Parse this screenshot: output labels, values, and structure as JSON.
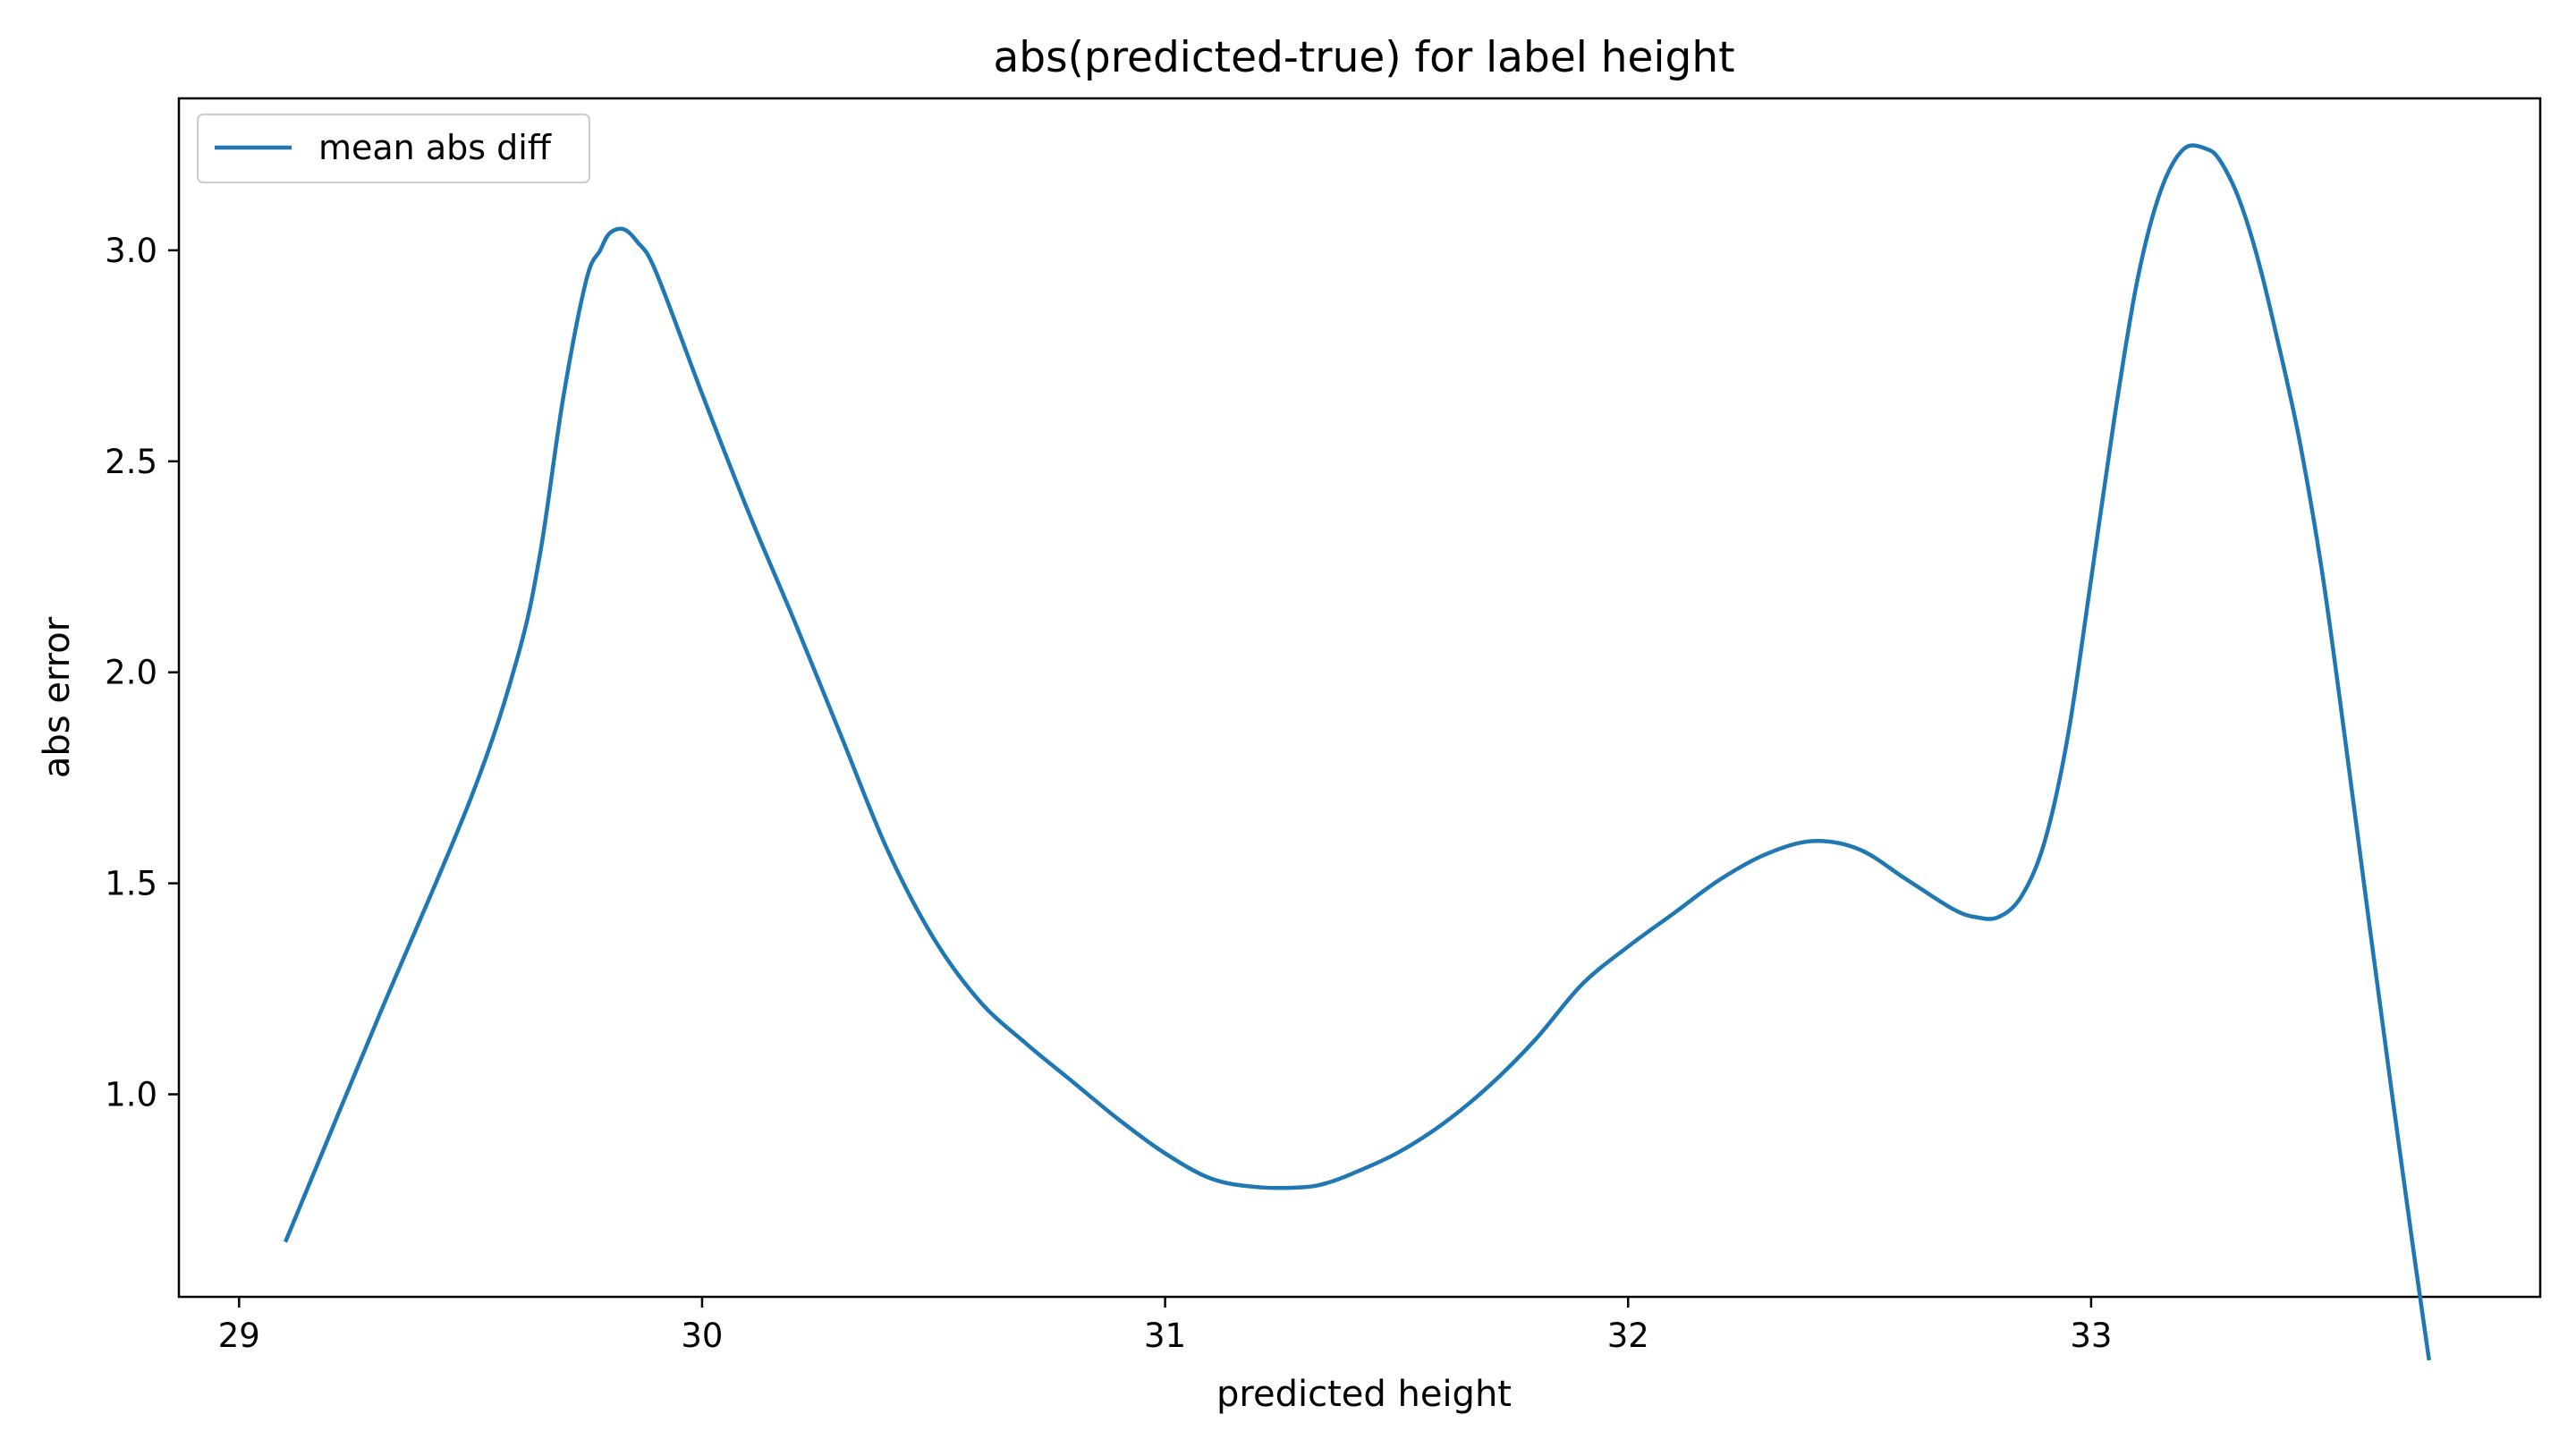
{
  "chart_data": {
    "type": "line",
    "title": "abs(predicted-true) for label height",
    "xlabel": "predicted height",
    "ylabel": "abs error",
    "xlim": [
      28.87,
      33.97
    ],
    "ylim": [
      0.52,
      3.36
    ],
    "xticks": [
      29,
      30,
      31,
      32,
      33
    ],
    "xtick_labels": [
      "29",
      "30",
      "31",
      "32",
      "33"
    ],
    "yticks": [
      1.0,
      1.5,
      2.0,
      2.5,
      3.0
    ],
    "ytick_labels": [
      "1.0",
      "1.5",
      "2.0",
      "2.5",
      "3.0"
    ],
    "grid": false,
    "legend_position": "top-left",
    "series": [
      {
        "name": "mean abs diff",
        "color": "#1f77b4",
        "x": [
          29.1,
          29.3,
          29.5,
          29.6,
          29.65,
          29.7,
          29.75,
          29.78,
          29.8,
          29.83,
          29.86,
          29.9,
          30.0,
          30.1,
          30.2,
          30.3,
          30.4,
          30.5,
          30.6,
          30.7,
          30.8,
          30.9,
          31.0,
          31.1,
          31.2,
          31.3,
          31.35,
          31.4,
          31.5,
          31.6,
          31.7,
          31.8,
          31.9,
          32.0,
          32.1,
          32.2,
          32.3,
          32.4,
          32.5,
          32.6,
          32.7,
          32.75,
          32.8,
          32.85,
          32.9,
          32.95,
          33.0,
          33.05,
          33.1,
          33.15,
          33.2,
          33.25,
          33.28,
          33.32,
          33.36,
          33.4,
          33.45,
          33.5,
          33.55,
          33.6,
          33.65,
          33.7,
          33.73
        ],
        "y": [
          0.65,
          1.18,
          1.7,
          2.03,
          2.28,
          2.65,
          2.93,
          3.0,
          3.04,
          3.05,
          3.02,
          2.95,
          2.66,
          2.38,
          2.12,
          1.85,
          1.58,
          1.37,
          1.22,
          1.12,
          1.03,
          0.94,
          0.86,
          0.8,
          0.78,
          0.78,
          0.79,
          0.81,
          0.86,
          0.93,
          1.02,
          1.13,
          1.26,
          1.35,
          1.43,
          1.51,
          1.57,
          1.6,
          1.58,
          1.51,
          1.44,
          1.42,
          1.42,
          1.47,
          1.6,
          1.85,
          2.22,
          2.6,
          2.93,
          3.14,
          3.24,
          3.24,
          3.21,
          3.12,
          2.98,
          2.8,
          2.55,
          2.23,
          1.83,
          1.41,
          1.0,
          0.6,
          0.37
        ]
      }
    ]
  }
}
